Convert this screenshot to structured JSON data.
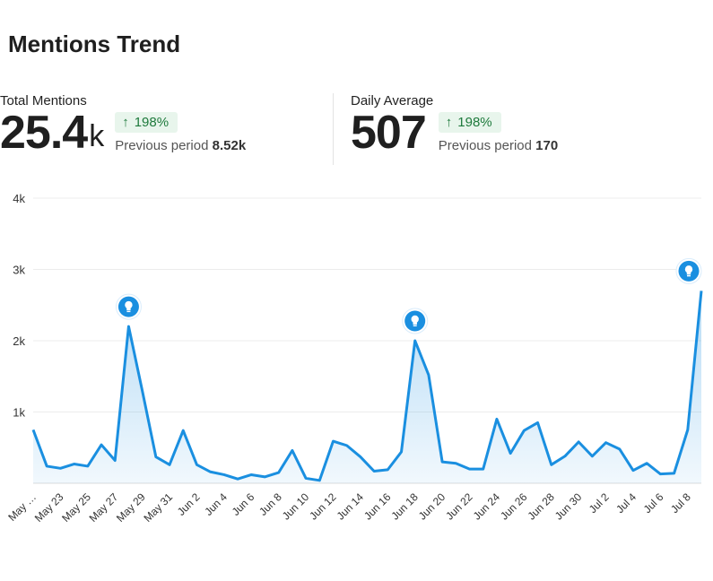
{
  "title": "Mentions Trend",
  "kpis": [
    {
      "label": "Total Mentions",
      "value": "25.4",
      "unit": "k",
      "change": "198%",
      "prev_label": "Previous period",
      "prev_value": "8.52k"
    },
    {
      "label": "Daily Average",
      "value": "507",
      "unit": "",
      "change": "198%",
      "prev_label": "Previous period",
      "prev_value": "170"
    }
  ],
  "colors": {
    "line": "#1a8fe0",
    "badge_bg": "#e8f5ec",
    "badge_text": "#1e7a3c",
    "grid": "#ececec"
  },
  "chart_data": {
    "type": "area",
    "title": "",
    "xlabel": "",
    "ylabel": "",
    "ylim": [
      0,
      4000
    ],
    "y_ticks": [
      1000,
      2000,
      3000,
      4000
    ],
    "y_tick_labels": [
      "1k",
      "2k",
      "3k",
      "4k"
    ],
    "grid": true,
    "x_tick_labels": [
      "May …",
      "May 23",
      "May 25",
      "May 27",
      "May 29",
      "May 31",
      "Jun 2",
      "Jun 4",
      "Jun 6",
      "Jun 8",
      "Jun 10",
      "Jun 12",
      "Jun 14",
      "Jun 16",
      "Jun 18",
      "Jun 20",
      "Jun 22",
      "Jun 24",
      "Jun 26",
      "Jun 28",
      "Jun 30",
      "Jul 2",
      "Jul 4",
      "Jul 6",
      "Jul 8"
    ],
    "x": [
      "May 21",
      "May 22",
      "May 23",
      "May 24",
      "May 25",
      "May 26",
      "May 27",
      "May 28",
      "May 29",
      "May 30",
      "May 31",
      "Jun 1",
      "Jun 2",
      "Jun 3",
      "Jun 4",
      "Jun 5",
      "Jun 6",
      "Jun 7",
      "Jun 8",
      "Jun 9",
      "Jun 10",
      "Jun 11",
      "Jun 12",
      "Jun 13",
      "Jun 14",
      "Jun 15",
      "Jun 16",
      "Jun 17",
      "Jun 18",
      "Jun 19",
      "Jun 20",
      "Jun 21",
      "Jun 22",
      "Jun 23",
      "Jun 24",
      "Jun 25",
      "Jun 26",
      "Jun 27",
      "Jun 28",
      "Jun 29",
      "Jun 30",
      "Jul 1",
      "Jul 2",
      "Jul 3",
      "Jul 4",
      "Jul 5",
      "Jul 6",
      "Jul 7",
      "Jul 8",
      "Jul 9"
    ],
    "series": [
      {
        "values": [
          750,
          240,
          210,
          270,
          240,
          540,
          320,
          2200,
          1300,
          370,
          260,
          740,
          260,
          160,
          120,
          60,
          120,
          90,
          150,
          460,
          70,
          40,
          590,
          530,
          370,
          170,
          190,
          440,
          2000,
          1520,
          300,
          280,
          200,
          200,
          900,
          420,
          740,
          850,
          260,
          380,
          580,
          380,
          570,
          480,
          180,
          280,
          130,
          140,
          750,
          2700
        ]
      }
    ],
    "insight_markers": [
      {
        "x": "May 28",
        "icon": "lightbulb-icon"
      },
      {
        "x": "Jun 18",
        "icon": "lightbulb-icon"
      },
      {
        "x": "Jul 9",
        "icon": "lightbulb-icon"
      }
    ]
  }
}
